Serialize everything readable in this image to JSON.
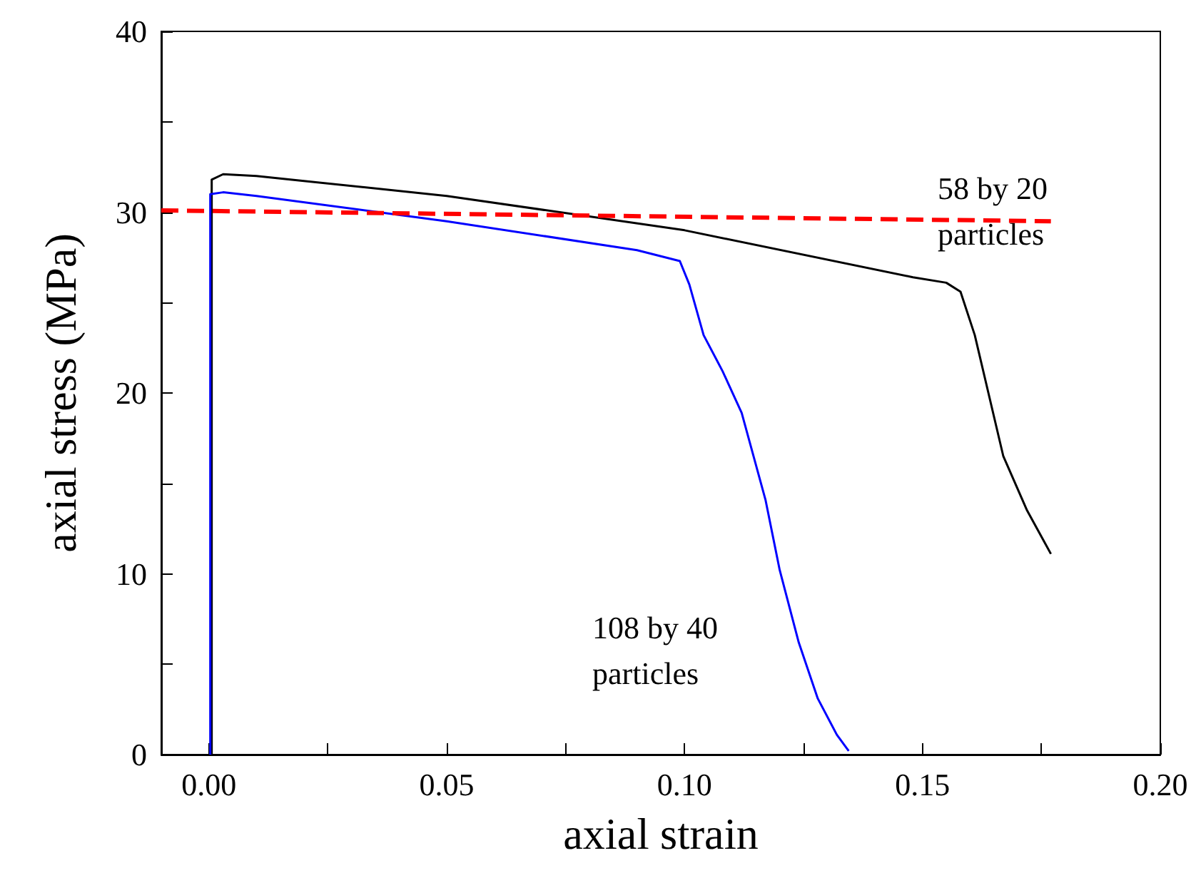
{
  "chart_data": {
    "type": "line",
    "xlabel": "axial strain",
    "ylabel": "axial stress (MPa)",
    "xlim": [
      -0.01,
      0.2
    ],
    "ylim": [
      0,
      40
    ],
    "xticks": [
      {
        "value": 0,
        "label": "0.00"
      },
      {
        "value": 0.025,
        "label": null
      },
      {
        "value": 0.05,
        "label": "0.05"
      },
      {
        "value": 0.075,
        "label": null
      },
      {
        "value": 0.1,
        "label": "0.10"
      },
      {
        "value": 0.125,
        "label": null
      },
      {
        "value": 0.15,
        "label": "0.15"
      },
      {
        "value": 0.175,
        "label": null
      },
      {
        "value": 0.2,
        "label": "0.20"
      }
    ],
    "yticks": [
      0,
      {
        "value": 5,
        "label": null
      },
      10,
      {
        "value": 15,
        "label": null
      },
      20,
      {
        "value": 25,
        "label": null
      },
      30,
      {
        "value": 35,
        "label": null
      },
      40
    ],
    "marker": "none",
    "series": [
      {
        "color": "#000000",
        "line_style": "solid",
        "x": [
          0.0006,
          0.0006,
          0.003,
          0.01,
          0.05,
          0.1,
          0.148,
          0.155,
          0.158,
          0.161,
          0.167,
          0.172,
          0.177
        ],
        "values": [
          0,
          31.8,
          32.1,
          32,
          30.9,
          29,
          26.4,
          26.1,
          25.6,
          23.2,
          16.5,
          13.5,
          11.1
        ]
      },
      {
        "color": "#0000ff",
        "line_style": "solid",
        "x": [
          0.0003,
          0.0003,
          0.003,
          0.01,
          0.05,
          0.09,
          0.099,
          0.101,
          0.104,
          0.108,
          0.112,
          0.117,
          0.12,
          0.124,
          0.128,
          0.132,
          0.1345
        ],
        "values": [
          0,
          31,
          31.1,
          30.9,
          29.5,
          27.9,
          27.3,
          26,
          23.2,
          21.2,
          18.9,
          14.1,
          10.2,
          6.2,
          3.1,
          1.1,
          0.2
        ]
      },
      {
        "color": "#ff0000",
        "line_style": "dashed",
        "x": [
          -0.01,
          0.177
        ],
        "values": [
          30.1,
          29.5
        ]
      }
    ],
    "annotations": [
      "58 by 20\nparticles",
      "108 by 40\nparticles"
    ]
  }
}
